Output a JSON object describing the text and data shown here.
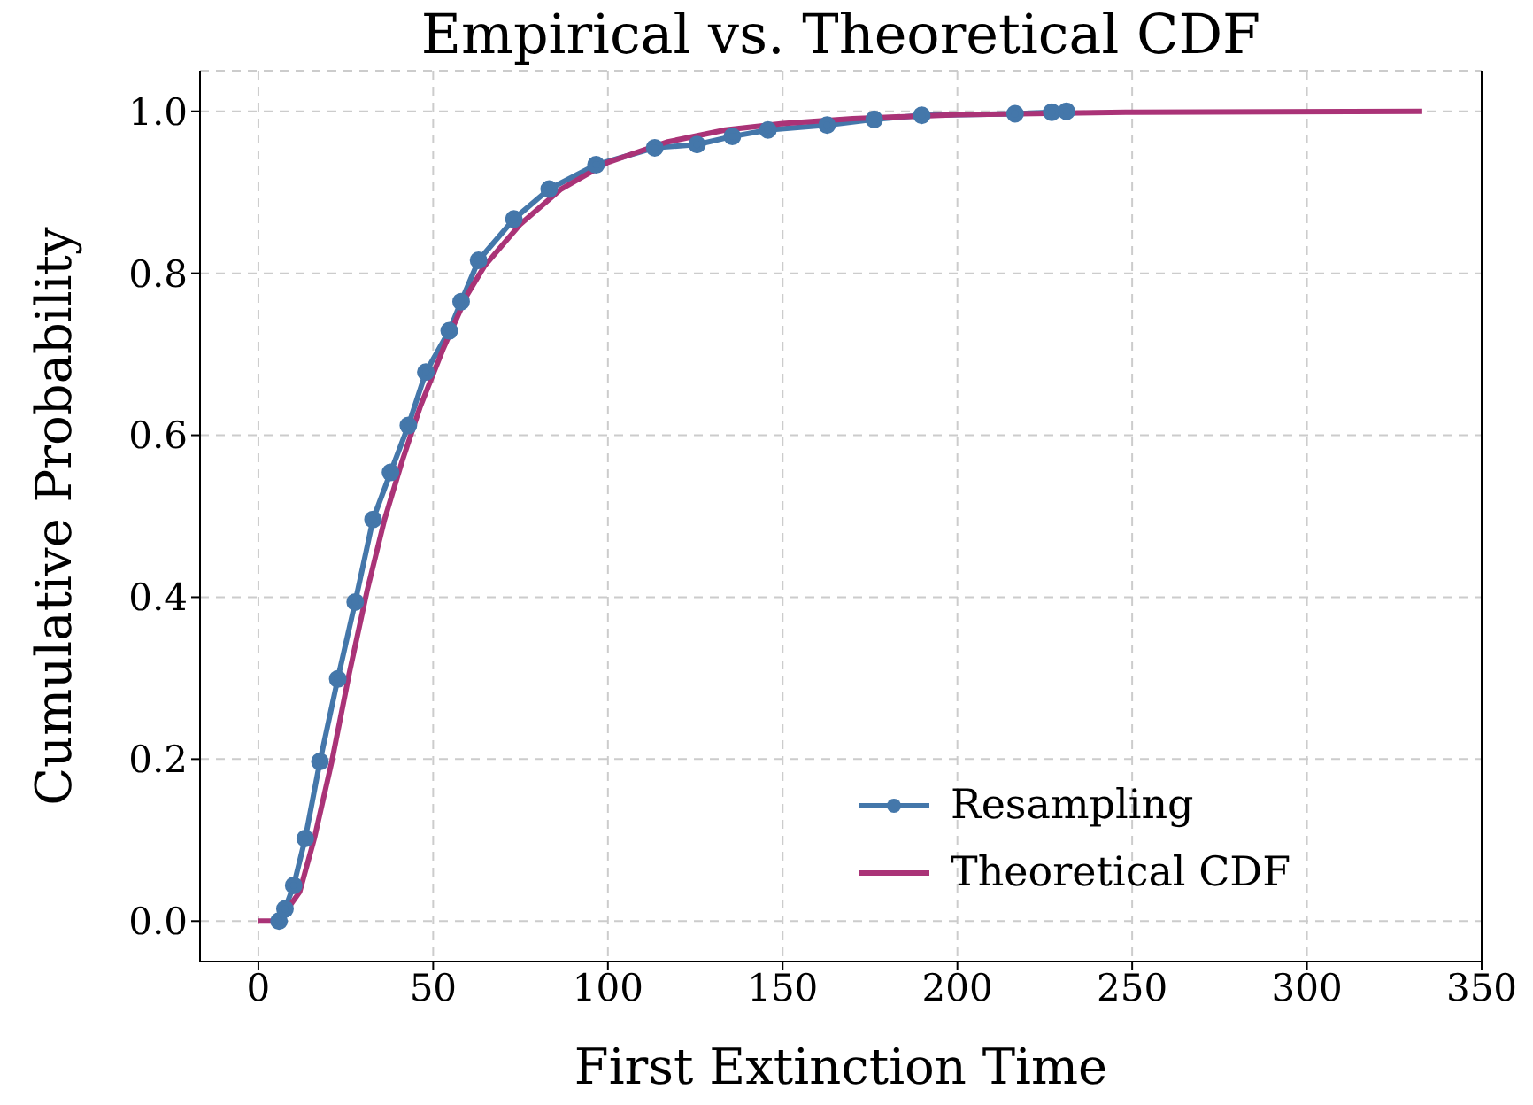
{
  "chart_data": {
    "type": "line",
    "title": "Empirical vs. Theoretical CDF",
    "xlabel": "First Extinction Time",
    "ylabel": "Cumulative Probability",
    "series": [
      {
        "name": "Resampling",
        "color": "#4477aa",
        "marker": "circle",
        "x": [
          5.9,
          7.6,
          10.1,
          13.4,
          17.6,
          22.7,
          27.7,
          32.8,
          37.8,
          42.9,
          47.9,
          54.6,
          58,
          63,
          73.1,
          83.2,
          96.6,
          113.4,
          125.5,
          135.6,
          145.8,
          162.7,
          176.2,
          189.8,
          216.5,
          227,
          231.2
        ],
        "values": [
          0,
          0.015,
          0.044,
          0.102,
          0.197,
          0.299,
          0.394,
          0.496,
          0.554,
          0.612,
          0.678,
          0.729,
          0.765,
          0.816,
          0.867,
          0.904,
          0.934,
          0.955,
          0.959,
          0.969,
          0.977,
          0.983,
          0.99,
          0.995,
          0.997,
          0.999,
          1.0
        ]
      },
      {
        "name": "Theoretical CDF",
        "color": "#aa3377",
        "marker": "none",
        "x": [
          0,
          5.9,
          11.8,
          16,
          21,
          26,
          31.1,
          36.1,
          41.2,
          46.2,
          52.9,
          59.7,
          64.7,
          74.8,
          86.6,
          100,
          116.8,
          133.6,
          150,
          170,
          200,
          250,
          333
        ],
        "values": [
          0,
          0,
          0.036,
          0.102,
          0.197,
          0.306,
          0.408,
          0.496,
          0.569,
          0.634,
          0.707,
          0.773,
          0.809,
          0.86,
          0.904,
          0.937,
          0.962,
          0.977,
          0.985,
          0.991,
          0.996,
          0.999,
          1.0
        ]
      }
    ],
    "xlim": [
      -16.7,
      350
    ],
    "xticks": [
      0,
      50,
      100,
      150,
      200,
      250,
      300,
      350
    ],
    "ylim": [
      -0.05,
      1.05
    ],
    "yticks": [
      {
        "value": 0,
        "label": "0.0"
      },
      {
        "value": 0.2,
        "label": "0.2"
      },
      {
        "value": 0.4,
        "label": "0.4"
      },
      {
        "value": 0.6,
        "label": "0.6"
      },
      {
        "value": 0.8,
        "label": "0.8"
      },
      {
        "value": 1,
        "label": "1.0"
      }
    ],
    "grid": true,
    "legend": "bottom right",
    "line_style": "solid"
  }
}
